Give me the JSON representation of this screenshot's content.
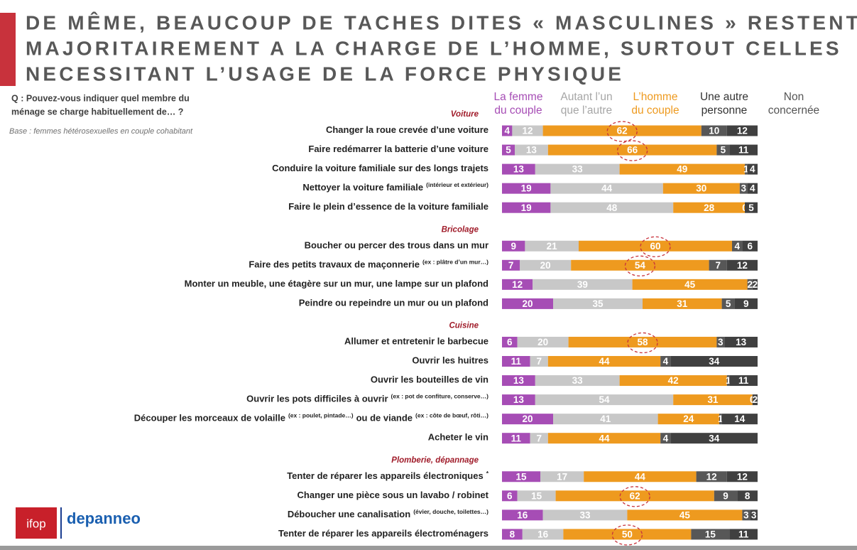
{
  "chart_data": {
    "type": "bar",
    "orientation": "horizontal",
    "stacked": true,
    "title_lines": [
      "DE MÊME, BEAUCOUP DE TACHES DITES « MASCULINES » RESTENT",
      "MAJORITAIREMENT A LA CHARGE  DE L’HOMME, SURTOUT  CELLES",
      "NECESSITANT L’USAGE DE LA FORCE PHYSIQUE"
    ],
    "question": [
      "Q : Pouvez-vous indiquer quel membre du",
      "ménage se charge habituellement de… ?"
    ],
    "base": "Base : femmes hétérosexuelles en couple cohabitant",
    "group_labels": [
      "Voiture",
      null,
      null,
      null,
      null,
      "Bricolage",
      null,
      null,
      null,
      "Cuisine",
      null,
      null,
      null,
      null,
      null,
      "Plomberie, dépannage",
      null,
      null,
      null
    ],
    "categories": [
      "Changer la roue crevée d’une voiture",
      "Faire redémarrer la batterie d’une voiture",
      "Conduire la voiture familiale sur des longs trajets",
      "Nettoyer la voiture familiale",
      "Faire le plein d’essence de la voiture familiale",
      "Boucher ou percer des trous dans un mur",
      "Faire des petits travaux de maçonnerie",
      "Monter un meuble, une étagère sur un mur, une lampe sur un plafond",
      "Peindre ou repeindre un mur ou un plafond",
      "Allumer et entretenir le barbecue",
      "Ouvrir les huitres",
      "Ouvrir les bouteilles de vin",
      "Ouvrir les pots difficiles à ouvrir",
      "Découper les morceaux de volaille",
      "Acheter le vin",
      "Tenter de réparer les appareils électroniques",
      "Changer une pièce sous un lavabo / robinet",
      "Déboucher une canalisation",
      "Tenter de réparer les appareils électroménagers"
    ],
    "category_suffix": [
      null,
      null,
      null,
      [
        {
          "text": "(intérieur et extérieur)",
          "small": true
        }
      ],
      null,
      null,
      [
        {
          "text": "(ex : plâtre d’un mur…)",
          "small": true
        }
      ],
      null,
      null,
      null,
      null,
      null,
      [
        {
          "text": "(ex : pot de confiture, conserve…)",
          "small": true
        }
      ],
      [
        {
          "text": "(ex : poulet, pintade…)",
          "small": true
        },
        {
          "text": "ou de viande",
          "small": false
        },
        {
          "text": "(ex : côte de bœuf, rôti…)",
          "small": true
        }
      ],
      null,
      [
        {
          "text": "*",
          "small": true
        }
      ],
      null,
      [
        {
          "text": "(évier, douche, toilettes…)",
          "small": true
        }
      ],
      null
    ],
    "xlim": [
      0,
      100
    ],
    "series": [
      {
        "name": [
          "La femme",
          "du couple"
        ],
        "color": "#a64db5",
        "label_color": "#a64db5",
        "values": [
          4,
          5,
          13,
          19,
          19,
          9,
          7,
          12,
          20,
          6,
          11,
          13,
          13,
          20,
          11,
          15,
          6,
          16,
          8
        ]
      },
      {
        "name": [
          "Autant l’un",
          "que l’autre"
        ],
        "color": "#c8c8c8",
        "label_color": "#a6a6a6",
        "values": [
          12,
          13,
          33,
          44,
          48,
          21,
          20,
          39,
          35,
          20,
          7,
          33,
          54,
          41,
          7,
          17,
          15,
          33,
          16
        ]
      },
      {
        "name": [
          "L’homme",
          "du couple"
        ],
        "color": "#ee9a1f",
        "label_color": "#ee9a1f",
        "values": [
          62,
          66,
          49,
          30,
          28,
          60,
          54,
          45,
          31,
          58,
          44,
          42,
          31,
          24,
          44,
          44,
          62,
          45,
          50
        ],
        "circled": [
          true,
          true,
          false,
          false,
          false,
          true,
          true,
          false,
          false,
          true,
          false,
          false,
          false,
          false,
          false,
          false,
          true,
          false,
          true
        ]
      },
      {
        "name": [
          "Une autre",
          "personne"
        ],
        "color": "#575757",
        "label_color": "#333333",
        "values": [
          10,
          5,
          1,
          3,
          0,
          4,
          7,
          2,
          5,
          3,
          4,
          1,
          0,
          1,
          4,
          12,
          9,
          3,
          15
        ]
      },
      {
        "name": [
          "Non",
          "concernée"
        ],
        "color": "#404040",
        "label_color": "#555555",
        "values": [
          12,
          11,
          4,
          4,
          5,
          6,
          12,
          2,
          9,
          13,
          34,
          11,
          2,
          14,
          34,
          12,
          8,
          3,
          11
        ]
      }
    ]
  },
  "logos": {
    "left": "ifop",
    "right": "depanneo"
  }
}
